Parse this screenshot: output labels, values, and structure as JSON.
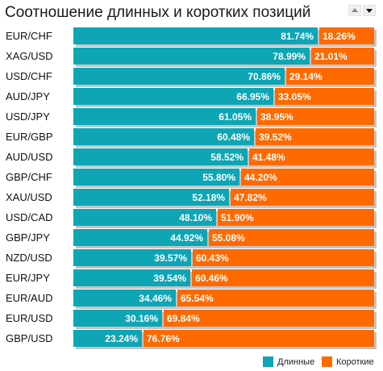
{
  "header": {
    "title": "Соотношение длинных и коротких позиций",
    "sort_up_icon": "triangle-up-icon",
    "sort_down_icon": "triangle-down-icon"
  },
  "colors": {
    "long": "#0ea5b5",
    "short": "#ff6a00",
    "shadow": "#c4c4c4"
  },
  "legend": {
    "long_label": "Длинные",
    "short_label": "Короткие"
  },
  "chart_data": {
    "type": "bar",
    "stacked": true,
    "orientation": "horizontal",
    "categories": [
      "EUR/CHF",
      "XAG/USD",
      "USD/CHF",
      "AUD/JPY",
      "USD/JPY",
      "EUR/GBP",
      "AUD/USD",
      "GBP/CHF",
      "XAU/USD",
      "USD/CAD",
      "GBP/JPY",
      "NZD/USD",
      "EUR/JPY",
      "EUR/AUD",
      "EUR/USD",
      "GBP/USD"
    ],
    "series": [
      {
        "name": "Длинные",
        "values": [
          81.74,
          78.99,
          70.86,
          66.95,
          61.05,
          60.48,
          58.52,
          55.8,
          52.18,
          48.1,
          44.92,
          39.57,
          39.54,
          34.46,
          30.16,
          23.24
        ],
        "labels": [
          "81.74%",
          "78.99%",
          "70.86%",
          "66.95%",
          "61.05%",
          "60.48%",
          "58.52%",
          "55.80%",
          "52.18%",
          "48.10%",
          "44.92%",
          "39.57%",
          "39.54%",
          "34.46%",
          "30.16%",
          "23.24%"
        ]
      },
      {
        "name": "Короткие",
        "values": [
          18.26,
          21.01,
          29.14,
          33.05,
          38.95,
          39.52,
          41.48,
          44.2,
          47.82,
          51.9,
          55.08,
          60.43,
          60.46,
          65.54,
          69.84,
          76.76
        ],
        "labels": [
          "18.26%",
          "21.01%",
          "29.14%",
          "33.05%",
          "38.95%",
          "39.52%",
          "41.48%",
          "44.20%",
          "47.82%",
          "51.90%",
          "55.08%",
          "60.43%",
          "60.46%",
          "65.54%",
          "69.84%",
          "76.76%"
        ]
      }
    ],
    "xlim": [
      0,
      100
    ],
    "legend_position": "bottom-right",
    "grid": false
  }
}
